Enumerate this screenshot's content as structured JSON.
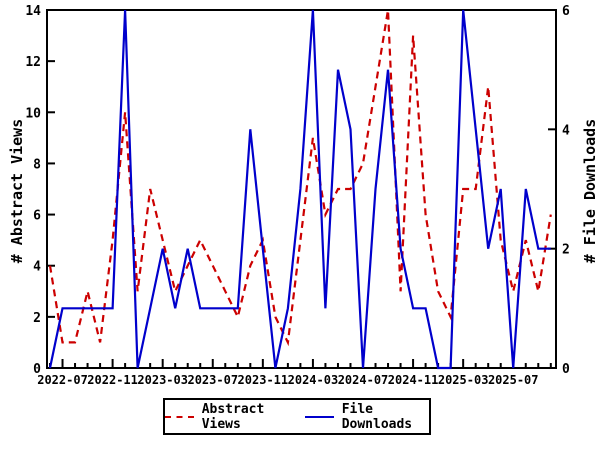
{
  "chart_data": {
    "type": "line",
    "title": "",
    "x": [
      "2022-06",
      "2022-07",
      "2022-08",
      "2022-09",
      "2022-10",
      "2022-11",
      "2022-12",
      "2023-01",
      "2023-02",
      "2023-03",
      "2023-04",
      "2023-05",
      "2023-06",
      "2023-07",
      "2023-08",
      "2023-09",
      "2023-10",
      "2023-11",
      "2023-12",
      "2024-01",
      "2024-02",
      "2024-03",
      "2024-04",
      "2024-05",
      "2024-06",
      "2024-07",
      "2024-08",
      "2024-09",
      "2024-10",
      "2024-11",
      "2024-12",
      "2025-01",
      "2025-02",
      "2025-03",
      "2025-04",
      "2025-05",
      "2025-06",
      "2025-07",
      "2025-08",
      "2025-09",
      "2025-10"
    ],
    "x_tick_labels": [
      "2022-07",
      "2022-11",
      "2023-03",
      "2023-07",
      "2023-11",
      "2024-03",
      "2024-07",
      "2024-11",
      "2025-03",
      "2025-07"
    ],
    "series": [
      {
        "name": "Abstract Views",
        "axis": "left",
        "color": "#cc0000",
        "style": "dashed",
        "values": [
          4,
          1,
          1,
          3,
          1,
          5,
          10,
          3,
          7,
          5,
          3,
          4,
          5,
          4,
          3,
          2,
          4,
          5,
          2,
          1,
          5,
          9,
          6,
          7,
          7,
          8,
          11,
          14,
          3,
          13,
          6,
          3,
          2,
          7,
          7,
          11,
          5,
          3,
          5,
          3,
          6
        ]
      },
      {
        "name": "File Downloads",
        "axis": "right",
        "color": "#0000cc",
        "style": "solid",
        "values": [
          0,
          1,
          1,
          1,
          1,
          1,
          6,
          0,
          1,
          2,
          1,
          2,
          1,
          1,
          1,
          1,
          4,
          2,
          0,
          1,
          3,
          6,
          1,
          5,
          4,
          0,
          3,
          5,
          2,
          1,
          1,
          0,
          0,
          6,
          4,
          2,
          3,
          0,
          3,
          2,
          2
        ]
      }
    ],
    "left_axis": {
      "label": "# Abstract Views",
      "min": 0,
      "max": 14,
      "ticks": [
        0,
        2,
        4,
        6,
        8,
        10,
        12,
        14
      ]
    },
    "right_axis": {
      "label": "# File Downloads",
      "min": 0,
      "max": 6,
      "ticks": [
        0,
        2,
        4,
        6
      ]
    },
    "legend_position": "bottom-center",
    "grid": false
  },
  "legend": {
    "items": [
      {
        "label": "Abstract Views",
        "color": "#cc0000",
        "style": "dashed"
      },
      {
        "label": "File Downloads",
        "color": "#0000cc",
        "style": "solid"
      }
    ]
  },
  "colors": {
    "abstract_views": "#cc0000",
    "file_downloads": "#0000cc",
    "frame": "#000000",
    "background": "#ffffff"
  }
}
